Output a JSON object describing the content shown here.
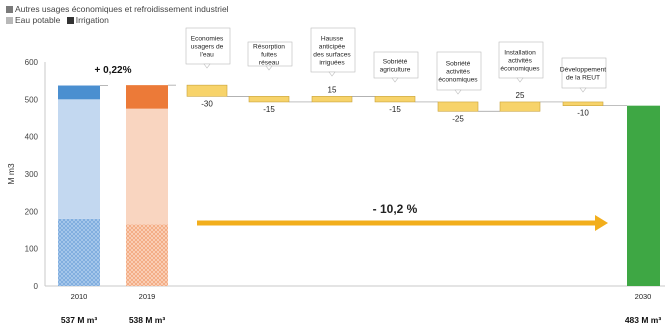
{
  "chart_data": {
    "type": "bar",
    "subtype": "waterfall",
    "ylabel": "M m3",
    "ylim": [
      0,
      600
    ],
    "yticks": [
      0,
      100,
      200,
      300,
      400,
      500,
      600
    ],
    "grid": false,
    "legend": {
      "position": "top-left",
      "entries": [
        {
          "label": "Autres usages économiques et refroidissement industriel",
          "color": "#7a7a7a"
        },
        {
          "label": "Eau potable",
          "color": "#b8b8b8"
        },
        {
          "label": "Irrigation",
          "color": "#333333"
        }
      ]
    },
    "annotations": {
      "change_2010_2019": "+ 0,22%",
      "change_total": "- 10,2 %"
    },
    "year_bars": [
      {
        "year": "2010",
        "total_label": "537 M m³",
        "total": 537,
        "stack": [
          {
            "segment": "Irrigation",
            "value": 180,
            "color": "#6ea6df"
          },
          {
            "segment": "Eau potable",
            "value": 320,
            "color": "#c3d8f0"
          },
          {
            "segment": "Autres usages économiques et refroidissement industriel",
            "value": 37,
            "color": "#4a8fd0"
          }
        ]
      },
      {
        "year": "2019",
        "total_label": "538 M m³",
        "total": 538,
        "stack": [
          {
            "segment": "Irrigation",
            "value": 165,
            "color": "#f3a27a"
          },
          {
            "segment": "Eau potable",
            "value": 310,
            "color": "#f9d5c0"
          },
          {
            "segment": "Autres usages économiques et refroidissement industriel",
            "value": 63,
            "color": "#ec7a38"
          }
        ]
      },
      {
        "year": "2030",
        "total_label": "483 M m³",
        "total": 483,
        "color": "#3ea744"
      }
    ],
    "steps": [
      {
        "label": "Economies usagers de l'eau",
        "value": -30
      },
      {
        "label": "Résorption fuites réseau",
        "value": -15
      },
      {
        "label": "Hausse anticipée des surfaces irriguées",
        "value": 15
      },
      {
        "label": "Sobriété agriculture",
        "value": -15
      },
      {
        "label": "Sobriété activités économiques",
        "value": -25
      },
      {
        "label": "Installation activités économiques",
        "value": 25
      },
      {
        "label": "Développement de la REUT",
        "value": -10
      }
    ],
    "step_color": "#f7d36a",
    "arrow_color": "#f2ae1c"
  }
}
